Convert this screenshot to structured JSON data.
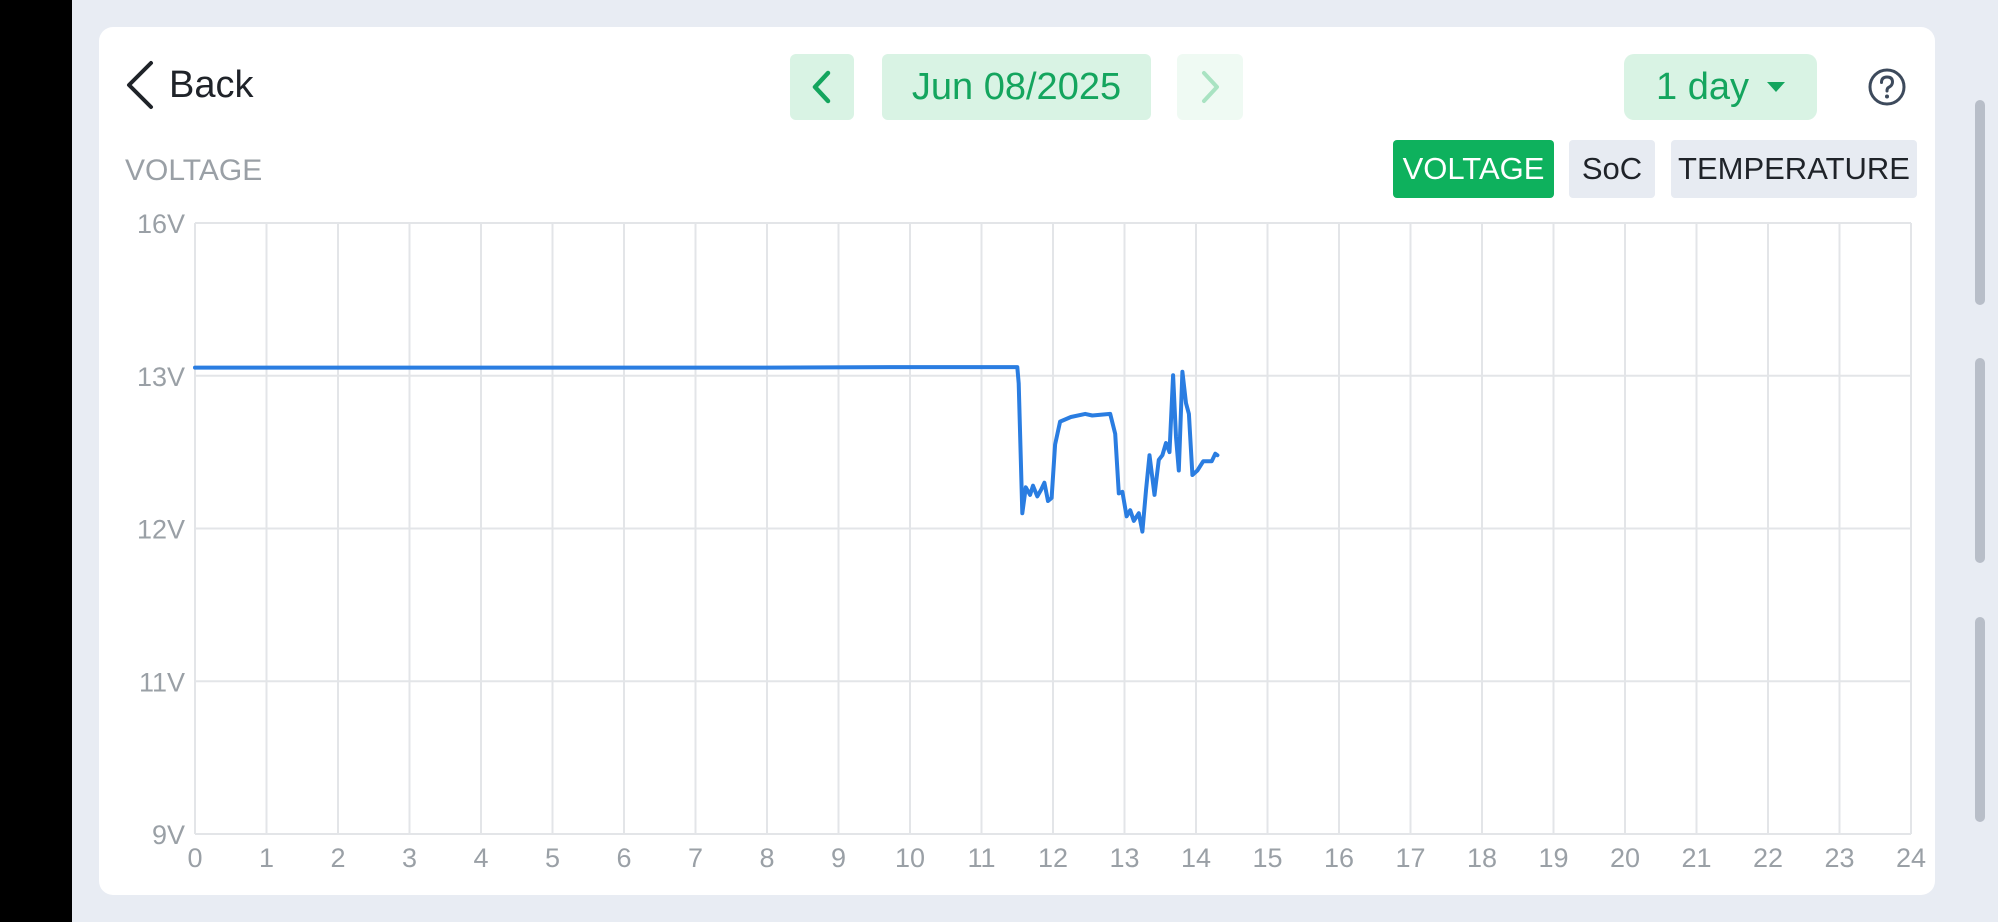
{
  "header": {
    "back_label": "Back",
    "date": "Jun 08/2025",
    "range": "1 day"
  },
  "chart_tabs": [
    "VOLTAGE",
    "SoC",
    "TEMPERATURE"
  ],
  "active_tab": "VOLTAGE",
  "colors": {
    "accent": "#0eb15d",
    "accent_text": "#14a55e",
    "line": "#2a7de1",
    "grid": "#e3e5e8"
  },
  "chart_data": {
    "type": "line",
    "title": "VOLTAGE",
    "xlabel": "",
    "ylabel": "",
    "xlim": [
      0,
      24
    ],
    "y_ticks": [
      {
        "value": 9,
        "label": "9V"
      },
      {
        "value": 11,
        "label": "11V"
      },
      {
        "value": 12,
        "label": "12V"
      },
      {
        "value": 13,
        "label": "13V"
      },
      {
        "value": 16,
        "label": "16V"
      }
    ],
    "x_ticks": [
      "0",
      "1",
      "2",
      "3",
      "4",
      "5",
      "6",
      "7",
      "8",
      "9",
      "10",
      "11",
      "12",
      "13",
      "14",
      "15",
      "16",
      "17",
      "18",
      "19",
      "20",
      "21",
      "22",
      "23",
      "24"
    ],
    "grid": true,
    "series": [
      {
        "points": [
          [
            0,
            13.16
          ],
          [
            2,
            13.16
          ],
          [
            4,
            13.16
          ],
          [
            6,
            13.16
          ],
          [
            8,
            13.16
          ],
          [
            10,
            13.17
          ],
          [
            11.25,
            13.17
          ],
          [
            11.5,
            13.17
          ],
          [
            11.52,
            12.95
          ],
          [
            11.57,
            12.1
          ],
          [
            11.62,
            12.27
          ],
          [
            11.68,
            12.22
          ],
          [
            11.72,
            12.28
          ],
          [
            11.78,
            12.21
          ],
          [
            11.83,
            12.25
          ],
          [
            11.88,
            12.3
          ],
          [
            11.93,
            12.18
          ],
          [
            11.98,
            12.2
          ],
          [
            12.03,
            12.55
          ],
          [
            12.1,
            12.7
          ],
          [
            12.25,
            12.73
          ],
          [
            12.45,
            12.75
          ],
          [
            12.55,
            12.74
          ],
          [
            12.8,
            12.75
          ],
          [
            12.87,
            12.62
          ],
          [
            12.92,
            12.23
          ],
          [
            12.97,
            12.24
          ],
          [
            13.03,
            12.08
          ],
          [
            13.08,
            12.12
          ],
          [
            13.13,
            12.05
          ],
          [
            13.2,
            12.1
          ],
          [
            13.25,
            11.98
          ],
          [
            13.3,
            12.25
          ],
          [
            13.35,
            12.48
          ],
          [
            13.42,
            12.22
          ],
          [
            13.48,
            12.45
          ],
          [
            13.53,
            12.48
          ],
          [
            13.58,
            12.56
          ],
          [
            13.63,
            12.5
          ],
          [
            13.68,
            13.01
          ],
          [
            13.72,
            12.6
          ],
          [
            13.76,
            12.38
          ],
          [
            13.81,
            13.08
          ],
          [
            13.86,
            12.82
          ],
          [
            13.9,
            12.75
          ],
          [
            13.95,
            12.35
          ],
          [
            14.02,
            12.38
          ],
          [
            14.1,
            12.44
          ],
          [
            14.22,
            12.44
          ],
          [
            14.27,
            12.49
          ],
          [
            14.3,
            12.48
          ]
        ]
      }
    ]
  }
}
